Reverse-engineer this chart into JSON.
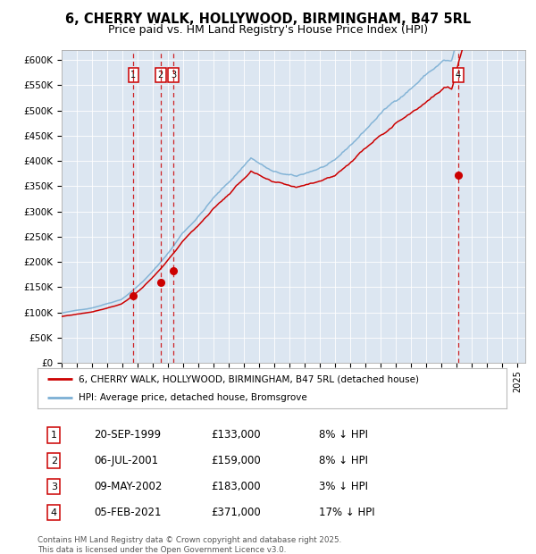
{
  "title": "6, CHERRY WALK, HOLLYWOOD, BIRMINGHAM, B47 5RL",
  "subtitle": "Price paid vs. HM Land Registry's House Price Index (HPI)",
  "hpi_label": "HPI: Average price, detached house, Bromsgrove",
  "property_label": "6, CHERRY WALK, HOLLYWOOD, BIRMINGHAM, B47 5RL (detached house)",
  "footer": "Contains HM Land Registry data © Crown copyright and database right 2025.\nThis data is licensed under the Open Government Licence v3.0.",
  "transactions": [
    {
      "num": 1,
      "date": "20-SEP-1999",
      "price": 133000,
      "hpi_diff": "8% ↓ HPI"
    },
    {
      "num": 2,
      "date": "06-JUL-2001",
      "price": 159000,
      "hpi_diff": "8% ↓ HPI"
    },
    {
      "num": 3,
      "date": "09-MAY-2002",
      "price": 183000,
      "hpi_diff": "3% ↓ HPI"
    },
    {
      "num": 4,
      "date": "05-FEB-2021",
      "price": 371000,
      "hpi_diff": "17% ↓ HPI"
    }
  ],
  "transaction_dates_decimal": [
    1999.72,
    2001.51,
    2002.36,
    2021.09
  ],
  "transaction_prices": [
    133000,
    159000,
    183000,
    371000
  ],
  "ylim": [
    0,
    620000
  ],
  "yticks": [
    0,
    50000,
    100000,
    150000,
    200000,
    250000,
    300000,
    350000,
    400000,
    450000,
    500000,
    550000,
    600000
  ],
  "xlim_start": 1995.0,
  "xlim_end": 2025.5,
  "plot_bg_color": "#dce6f1",
  "red_line_color": "#cc0000",
  "blue_line_color": "#7bafd4",
  "vline_color": "#cc0000",
  "dot_color": "#cc0000"
}
